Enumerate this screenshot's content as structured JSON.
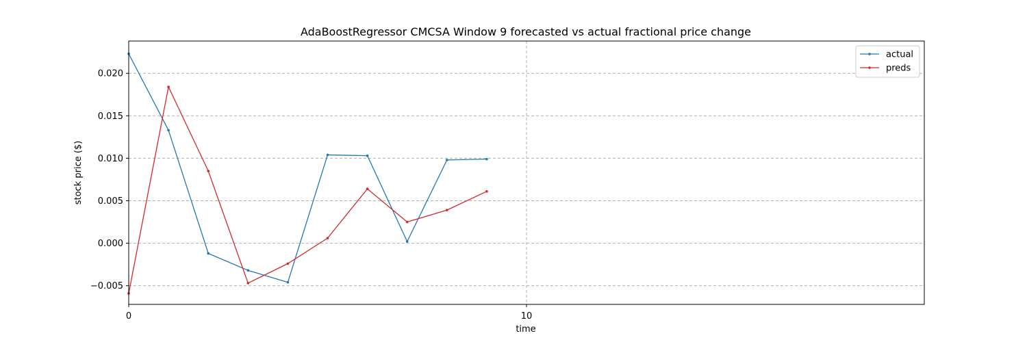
{
  "chart_data": {
    "type": "line",
    "title": "AdaBoostRegressor CMCSA Window 9 forecasted vs actual fractional price change",
    "xlabel": "time",
    "ylabel": "stock price ($)",
    "xlim": [
      0,
      20
    ],
    "ylim": [
      -0.0072,
      0.0238
    ],
    "x_ticks": [
      0,
      10
    ],
    "x_tick_labels": [
      "0",
      "10"
    ],
    "y_ticks": [
      -0.005,
      0.0,
      0.005,
      0.01,
      0.015,
      0.02
    ],
    "y_tick_labels": [
      "−0.005",
      "0.000",
      "0.005",
      "0.010",
      "0.015",
      "0.020"
    ],
    "grid": true,
    "legend_position": "top-right",
    "x": [
      0,
      1,
      2,
      3,
      4,
      5,
      6,
      7,
      8,
      9
    ],
    "series": [
      {
        "name": "actual",
        "color": "#1f77b4",
        "values": [
          0.0223,
          0.0133,
          -0.0012,
          -0.0032,
          -0.0046,
          0.0104,
          0.0103,
          0.0002,
          0.0098,
          0.0099
        ]
      },
      {
        "name": "preds",
        "color": "#d62728",
        "values": [
          -0.0059,
          0.0184,
          0.0085,
          -0.0047,
          -0.0024,
          0.0006,
          0.0064,
          0.0025,
          0.0039,
          0.0061
        ]
      }
    ]
  }
}
